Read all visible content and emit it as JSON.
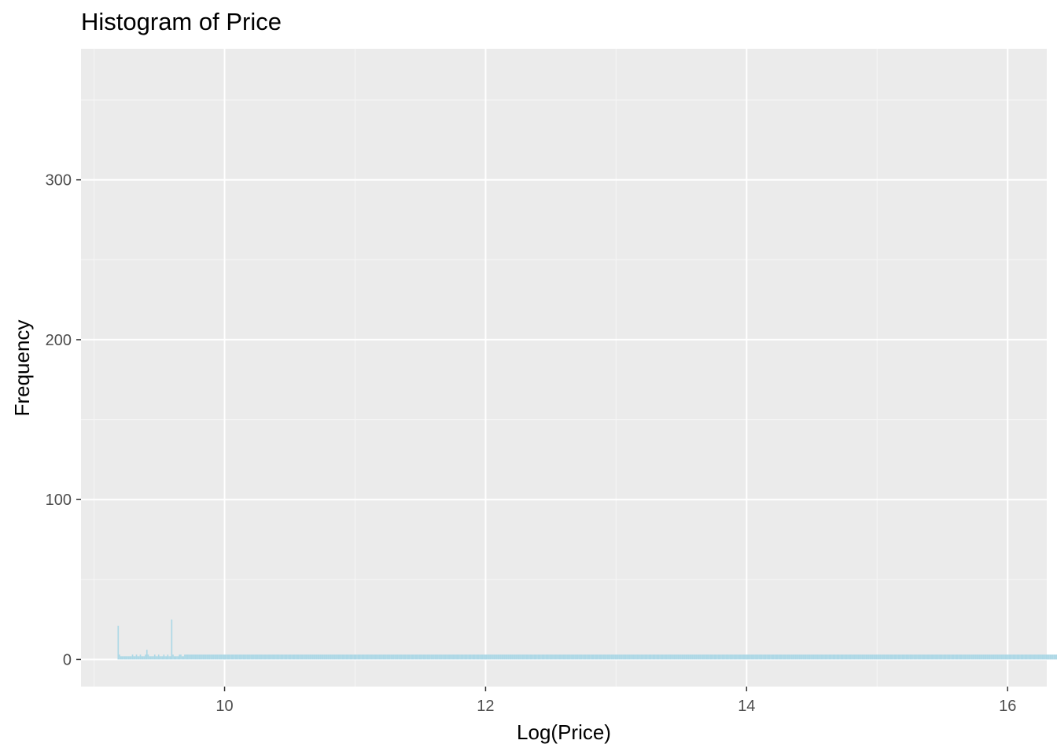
{
  "chart_data": {
    "type": "bar",
    "title": "Histogram of Price",
    "xlabel": "Log(Price)",
    "ylabel": "Frequency",
    "xlim": [
      8.9,
      16.3
    ],
    "ylim": [
      -17,
      382
    ],
    "x_ticks": [
      10,
      12,
      14,
      16
    ],
    "y_ticks": [
      0,
      100,
      200,
      300
    ],
    "grid": true,
    "legend": "none",
    "bin_start": 9.18,
    "bin_width": 0.01,
    "frequencies": [
      21,
      3,
      2,
      2,
      2,
      2,
      2,
      2,
      2,
      2,
      2,
      3,
      2,
      2,
      3,
      2,
      2,
      3,
      2,
      2,
      2,
      3,
      6,
      3,
      2,
      2,
      2,
      2,
      3,
      2,
      2,
      3,
      2,
      2,
      2,
      3,
      2,
      2,
      3,
      2,
      2,
      25,
      3,
      2,
      2,
      2,
      2,
      3,
      3,
      2,
      2,
      3,
      3,
      3,
      3,
      3,
      3,
      3,
      3,
      3,
      3,
      3,
      3,
      3,
      3,
      3,
      3,
      3,
      3,
      3,
      3,
      3,
      3,
      3,
      3,
      3,
      3,
      3,
      3,
      3,
      3,
      3,
      3,
      3,
      3,
      3,
      3,
      3,
      3,
      3,
      3,
      3,
      3,
      3,
      3,
      3,
      3,
      3,
      3,
      3,
      3,
      3,
      3,
      3,
      3,
      3,
      3,
      3,
      3,
      3,
      3,
      3,
      3,
      3,
      3,
      3,
      3,
      3,
      3,
      3,
      3,
      3,
      3,
      3,
      3,
      3,
      3,
      3,
      3,
      3,
      3,
      3,
      3,
      3,
      3,
      3,
      3,
      3,
      3,
      3,
      3,
      3,
      3,
      3,
      3,
      3,
      3,
      3,
      3,
      3,
      3,
      3,
      3,
      3,
      3,
      3,
      3,
      3,
      3,
      3,
      3,
      3,
      3,
      3,
      3,
      3,
      3,
      3,
      3,
      3,
      3,
      3,
      3,
      3,
      3,
      3,
      3,
      3,
      3,
      3,
      3,
      3,
      3,
      3,
      3,
      3,
      3,
      3,
      3,
      3,
      3,
      3,
      3,
      3,
      3,
      3,
      3,
      3,
      3,
      3,
      3,
      3,
      3,
      3,
      3,
      3,
      3,
      3,
      3,
      3,
      3,
      3,
      3,
      3,
      3,
      3,
      3,
      3,
      3,
      3,
      3,
      3,
      3,
      3,
      3,
      3,
      3,
      3,
      3,
      3,
      3,
      3,
      3,
      3,
      3,
      3,
      3,
      3,
      3,
      3,
      3,
      3,
      3,
      3,
      3,
      3,
      3,
      3,
      3,
      3,
      3,
      3,
      3,
      3,
      3,
      3,
      3,
      3,
      3,
      3,
      3,
      3,
      3,
      3,
      3,
      3,
      3,
      3,
      3,
      3,
      3,
      3,
      3,
      3,
      3,
      3,
      3,
      3,
      3,
      3,
      3,
      3,
      3,
      3,
      3,
      3,
      3,
      3,
      3,
      3,
      3,
      3,
      3,
      3,
      3,
      3,
      3,
      3,
      3,
      3,
      3,
      3,
      3,
      3,
      3,
      3,
      3,
      3,
      3,
      3,
      3,
      3,
      3,
      3,
      3,
      3,
      3,
      3,
      3,
      3,
      3,
      3,
      3,
      3,
      3,
      3,
      3,
      3,
      3,
      3,
      3,
      3,
      3,
      3,
      3,
      3,
      3,
      3,
      3,
      3,
      3,
      3,
      3,
      3,
      3,
      3,
      3,
      3,
      3,
      3,
      3,
      3,
      3,
      3,
      3,
      3,
      3,
      3,
      3,
      3,
      3,
      3,
      3,
      3,
      3,
      3,
      3,
      3,
      3,
      3,
      3,
      3,
      3,
      3,
      3,
      3,
      3,
      3,
      3,
      3,
      3,
      3,
      3,
      3,
      3,
      3,
      3,
      3,
      3,
      3,
      3,
      3,
      3,
      3,
      3,
      3,
      3,
      3,
      3,
      3,
      3,
      3,
      3,
      3,
      3,
      3,
      3,
      3,
      3,
      3,
      3,
      3,
      3,
      3,
      3,
      3,
      3,
      3,
      3,
      3,
      3,
      3,
      3,
      3,
      3,
      3,
      3,
      3,
      3,
      3,
      3,
      3,
      3,
      3,
      3,
      3,
      3,
      3,
      3,
      3,
      3,
      3,
      3,
      3,
      3,
      3,
      3,
      3,
      3,
      3,
      3,
      3,
      3,
      3,
      3,
      3,
      3,
      3,
      3,
      3,
      3,
      3,
      3,
      3,
      3,
      3,
      3,
      3,
      3,
      3,
      3,
      3,
      3,
      3,
      3,
      3,
      3,
      3,
      3,
      3,
      3,
      3,
      3,
      3,
      3,
      3,
      3,
      3,
      3,
      3,
      3,
      3,
      3,
      3,
      3,
      3,
      3,
      3,
      3,
      3,
      3,
      3,
      3,
      3,
      3,
      3,
      3,
      3,
      3,
      3,
      3,
      3,
      3,
      3,
      3,
      3,
      3,
      3,
      3,
      3,
      3,
      3,
      3,
      3,
      3,
      3,
      3,
      3,
      3,
      3,
      3,
      3,
      3,
      3,
      3,
      3,
      3,
      3,
      3,
      3,
      3,
      3,
      3,
      3,
      3,
      3,
      3,
      3,
      3,
      3,
      3,
      3,
      3,
      3,
      3,
      3,
      3,
      3,
      3,
      3,
      3,
      3,
      3,
      3,
      3,
      3,
      3,
      3,
      3,
      3,
      3,
      3,
      3,
      3,
      3,
      3,
      3,
      3,
      3,
      3,
      3,
      3,
      3,
      3,
      3,
      3,
      3,
      3,
      3,
      3,
      3,
      3,
      3,
      3,
      3,
      3,
      3,
      3,
      3,
      3,
      3,
      3,
      3,
      3,
      3,
      3,
      3,
      3,
      3,
      3,
      3,
      3,
      3,
      3,
      3,
      3,
      3,
      3,
      3,
      3,
      3,
      3,
      3,
      3,
      3,
      3,
      3,
      3,
      3,
      3,
      3,
      3,
      3,
      3,
      3,
      3,
      3,
      3,
      3,
      3,
      3,
      3,
      3,
      3,
      3,
      3,
      3,
      3,
      3,
      3,
      3,
      3,
      3,
      3,
      3,
      3,
      3,
      3,
      3,
      3,
      3,
      3,
      3,
      3,
      3,
      3,
      3,
      3,
      3,
      3,
      3,
      3,
      3,
      3,
      3,
      3,
      3,
      3,
      3,
      3,
      3,
      3,
      3,
      3,
      3,
      3,
      3,
      3,
      3,
      3,
      3,
      3,
      3,
      3,
      3,
      3,
      3,
      3,
      3,
      3,
      3,
      3,
      3,
      3,
      3,
      3,
      3,
      3,
      3,
      3,
      3,
      3,
      3,
      3,
      3,
      3,
      3,
      3,
      3,
      3,
      3,
      3,
      3,
      3,
      3,
      3,
      3,
      3,
      3,
      3,
      3,
      3,
      3,
      3,
      3,
      3,
      3,
      3,
      3,
      3,
      3,
      3,
      3,
      3,
      3,
      3,
      3,
      3,
      3,
      3,
      3,
      3,
      3,
      3,
      3,
      3,
      3,
      3,
      3,
      3,
      3,
      3,
      3,
      3,
      3,
      3,
      3,
      3,
      3,
      3,
      3,
      3,
      3,
      3,
      3,
      3,
      3,
      3,
      3,
      3,
      3,
      3,
      3,
      3,
      3,
      3,
      3,
      3,
      3,
      3,
      3,
      3,
      3,
      3,
      3,
      3,
      3,
      3,
      3,
      3,
      3,
      3,
      3,
      3,
      3,
      3,
      3,
      3,
      3,
      3,
      3
    ],
    "colors": {
      "bar": "#add8e6",
      "panel": "#ebebeb",
      "grid_major": "#ffffff",
      "grid_minor": "#f5f5f5",
      "tick": "#333333",
      "tick_label": "#4d4d4d"
    }
  }
}
